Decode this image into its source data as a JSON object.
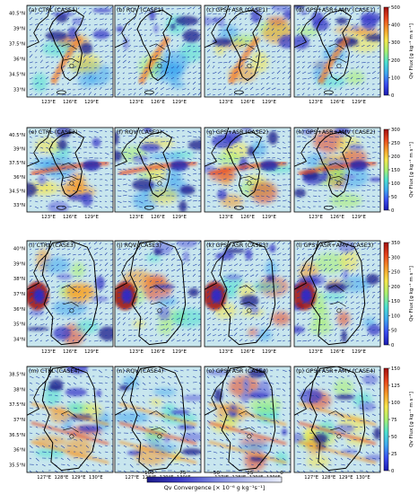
{
  "rows": [
    {
      "panels": [
        "(a) CTRL (CASE1)",
        "(b) RQV (CASE1)",
        "(c) GPS+ASR (CASE1)",
        "(d) GPS+ASR+AMV (CASE1)"
      ],
      "lat_labels": [
        "40.5°N",
        "39°N",
        "37.5°N",
        "36°N",
        "34.5°N",
        "33°N"
      ],
      "lon_labels": [
        "123°E",
        "126°E",
        "129°E"
      ],
      "cbar_ticks": [
        "500",
        "400",
        "300",
        "200",
        "100",
        "0"
      ],
      "cbar_max": 500
    },
    {
      "panels": [
        "(e) CTRL (CASE2)",
        "(f) RQV (CASE2)",
        "(g) GPS+ASR (CASE2)",
        "(h) GPS+ASR+AMV (CASE2)"
      ],
      "lat_labels": [
        "40.5°N",
        "39°N",
        "37.5°N",
        "36°N",
        "34.5°N",
        "33°N"
      ],
      "lon_labels": [
        "123°E",
        "126°E",
        "129°E"
      ],
      "cbar_ticks": [
        "300",
        "250",
        "200",
        "150",
        "100",
        "50",
        "0"
      ],
      "cbar_max": 300
    },
    {
      "panels": [
        "(i) CTRL (CASE3)",
        "(j) RQV (CASE3)",
        "(k) GPS+ASR (CASE3)",
        "(l) GPS+ASR+AMV (CASE3)"
      ],
      "lat_labels": [
        "40°N",
        "39°N",
        "38°N",
        "37°N",
        "36°N",
        "35°N",
        "34°N"
      ],
      "lon_labels": [
        "123°E",
        "126°E",
        "129°E"
      ],
      "cbar_ticks": [
        "350",
        "300",
        "250",
        "200",
        "150",
        "100",
        "50",
        "0"
      ],
      "cbar_max": 350
    },
    {
      "panels": [
        "(m) CTRL (CASE4)",
        "(n) RQV (CASE4)",
        "(o) GPS+ASR (CASE4)",
        "(p) GPS+ASR+AMV (CASE4)"
      ],
      "lat_labels": [
        "38.5°N",
        "38°N",
        "37.5°N",
        "37°N",
        "36.5°N",
        "36°N",
        "35.5°N"
      ],
      "lon_labels": [
        "127°E",
        "128°E",
        "129°E",
        "130°E"
      ],
      "cbar_ticks": [
        "150",
        "125",
        "100",
        "75",
        "50",
        "25",
        "0"
      ],
      "cbar_max": 150
    }
  ],
  "cbar_label_right": "Qv Flux [g kg⁻¹ m s⁻¹]",
  "bottom_cbar": {
    "label": "Qv Convergence [× 10⁻⁶ g kg⁻¹s⁻¹]",
    "ticks": [
      "−100",
      "−75",
      "−50",
      "−25",
      "0"
    ]
  },
  "colors": {
    "flux_scale": [
      "#1a1ab0",
      "#3a4cf0",
      "#3fa8f0",
      "#4ce0d0",
      "#a8f070",
      "#f6e64a",
      "#f59a2a",
      "#e8441c",
      "#a01010"
    ],
    "conv_scale": [
      "#1c1c8a",
      "#3d3dc9",
      "#7b86e0",
      "#b8c0ee",
      "#e8ecf8"
    ],
    "background": "#c8e6ee"
  }
}
